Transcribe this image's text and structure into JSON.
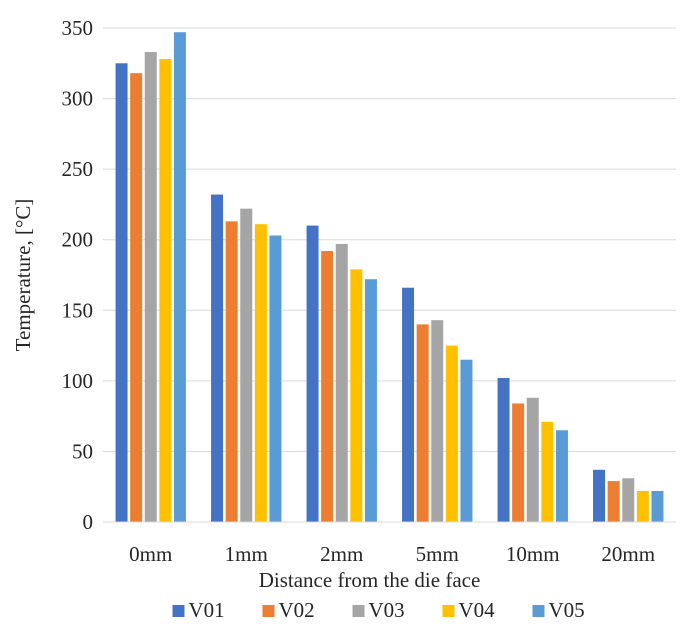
{
  "chart_data": {
    "type": "bar",
    "title": "",
    "xlabel": "Distance from the die face",
    "ylabel": "Temperature, [°C]",
    "categories": [
      "0mm",
      "1mm",
      "2mm",
      "5mm",
      "10mm",
      "20mm"
    ],
    "ylim": [
      0,
      350
    ],
    "yticks": [
      0,
      50,
      100,
      150,
      200,
      250,
      300,
      350
    ],
    "grid": true,
    "legend_position": "bottom",
    "series": [
      {
        "name": "V01",
        "color": "#4472C4",
        "values": [
          325,
          232,
          210,
          166,
          102,
          37
        ]
      },
      {
        "name": "V02",
        "color": "#ED7D31",
        "values": [
          318,
          213,
          192,
          140,
          84,
          29
        ]
      },
      {
        "name": "V03",
        "color": "#A5A5A5",
        "values": [
          333,
          222,
          197,
          143,
          88,
          31
        ]
      },
      {
        "name": "V04",
        "color": "#FFC000",
        "values": [
          328,
          211,
          179,
          125,
          71,
          22
        ]
      },
      {
        "name": "V05",
        "color": "#5B9BD5",
        "values": [
          347,
          203,
          172,
          115,
          65,
          22
        ]
      }
    ]
  }
}
